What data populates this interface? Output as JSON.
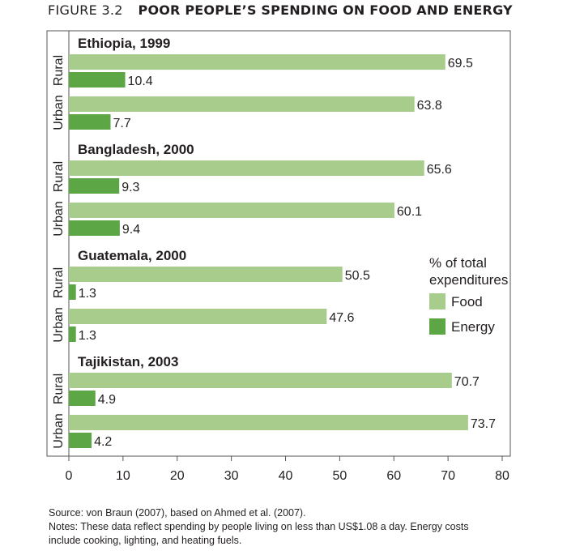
{
  "figure": {
    "number": "FIGURE 3.2",
    "title": "POOR PEOPLE’S SPENDING ON FOOD AND ENERGY"
  },
  "chart_data": {
    "type": "bar",
    "orientation": "horizontal",
    "xlim": [
      0,
      80
    ],
    "xticks": [
      "0",
      "10",
      "20",
      "30",
      "40",
      "50",
      "60",
      "70",
      "80"
    ],
    "groups": [
      {
        "title": "Ethiopia, 1999",
        "areas": [
          {
            "label": "Rural",
            "food": 69.5,
            "food_label": "69.5",
            "energy": 10.4,
            "energy_label": "10.4"
          },
          {
            "label": "Urban",
            "food": 63.8,
            "food_label": "63.8",
            "energy": 7.7,
            "energy_label": "7.7"
          }
        ]
      },
      {
        "title": "Bangladesh, 2000",
        "areas": [
          {
            "label": "Rural",
            "food": 65.6,
            "food_label": "65.6",
            "energy": 9.3,
            "energy_label": "9.3"
          },
          {
            "label": "Urban",
            "food": 60.1,
            "food_label": "60.1",
            "energy": 9.4,
            "energy_label": "9.4"
          }
        ]
      },
      {
        "title": "Guatemala, 2000",
        "areas": [
          {
            "label": "Rural",
            "food": 50.5,
            "food_label": "50.5",
            "energy": 1.3,
            "energy_label": "1.3"
          },
          {
            "label": "Urban",
            "food": 47.6,
            "food_label": "47.6",
            "energy": 1.3,
            "energy_label": "1.3"
          }
        ]
      },
      {
        "title": "Tajikistan, 2003",
        "areas": [
          {
            "label": "Rural",
            "food": 70.7,
            "food_label": "70.7",
            "energy": 4.9,
            "energy_label": "4.9"
          },
          {
            "label": "Urban",
            "food": 73.7,
            "food_label": "73.7",
            "energy": 4.2,
            "energy_label": "4.2"
          }
        ]
      }
    ],
    "legend": {
      "title_lines": [
        "% of total",
        "expenditures"
      ],
      "placement": "right-middle",
      "items": [
        {
          "name": "Food",
          "color": "#a8cc8b"
        },
        {
          "name": "Energy",
          "color": "#5da646"
        }
      ]
    },
    "grid": false
  },
  "footer": {
    "source": "Source: von Braun (2007), based on Ahmed et al. (2007).",
    "notes_line1": "Notes: These data reflect spending by people living on less than US$1.08 a day. Energy costs",
    "notes_line2": "include cooking, lighting, and heating fuels."
  }
}
